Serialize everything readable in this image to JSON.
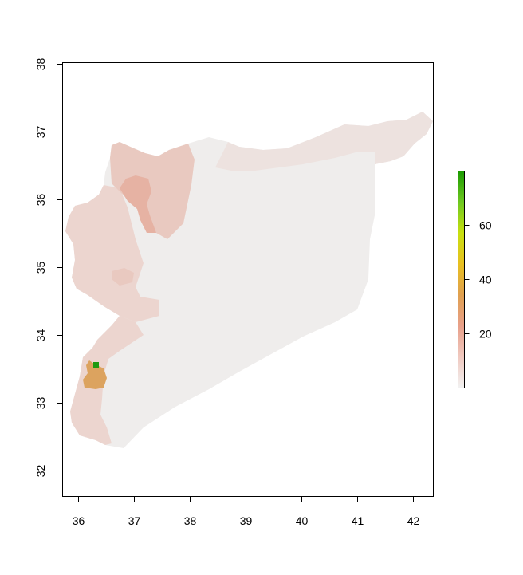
{
  "plot": {
    "x_axis": {
      "range": [
        35.72,
        42.36
      ],
      "ticks": [
        "36",
        "37",
        "38",
        "39",
        "40",
        "41",
        "42"
      ]
    },
    "y_axis": {
      "range": [
        32.37,
        38.01
      ],
      "ticks": [
        "32",
        "33",
        "34",
        "35",
        "36",
        "37",
        "38"
      ]
    }
  },
  "legend": {
    "range": [
      0,
      80
    ],
    "ticks": [
      "20",
      "40",
      "60"
    ],
    "colors": [
      "#f2f2f2",
      "#f0c9c0",
      "#e8a08a",
      "#e0a050",
      "#e8c020",
      "#c8e010",
      "#6ec820",
      "#1a9a00"
    ]
  },
  "map": {
    "region": "Syria",
    "colors": {
      "base": "#efedec",
      "light": "#ede2df",
      "coast": "#ecd5cf",
      "medium": "#e9c9c0",
      "hot_north": "#e6b2a3",
      "damascus": "#dca35f",
      "peak": "#1e9a10"
    },
    "peak_location": [
      36.33,
      33.55
    ]
  }
}
